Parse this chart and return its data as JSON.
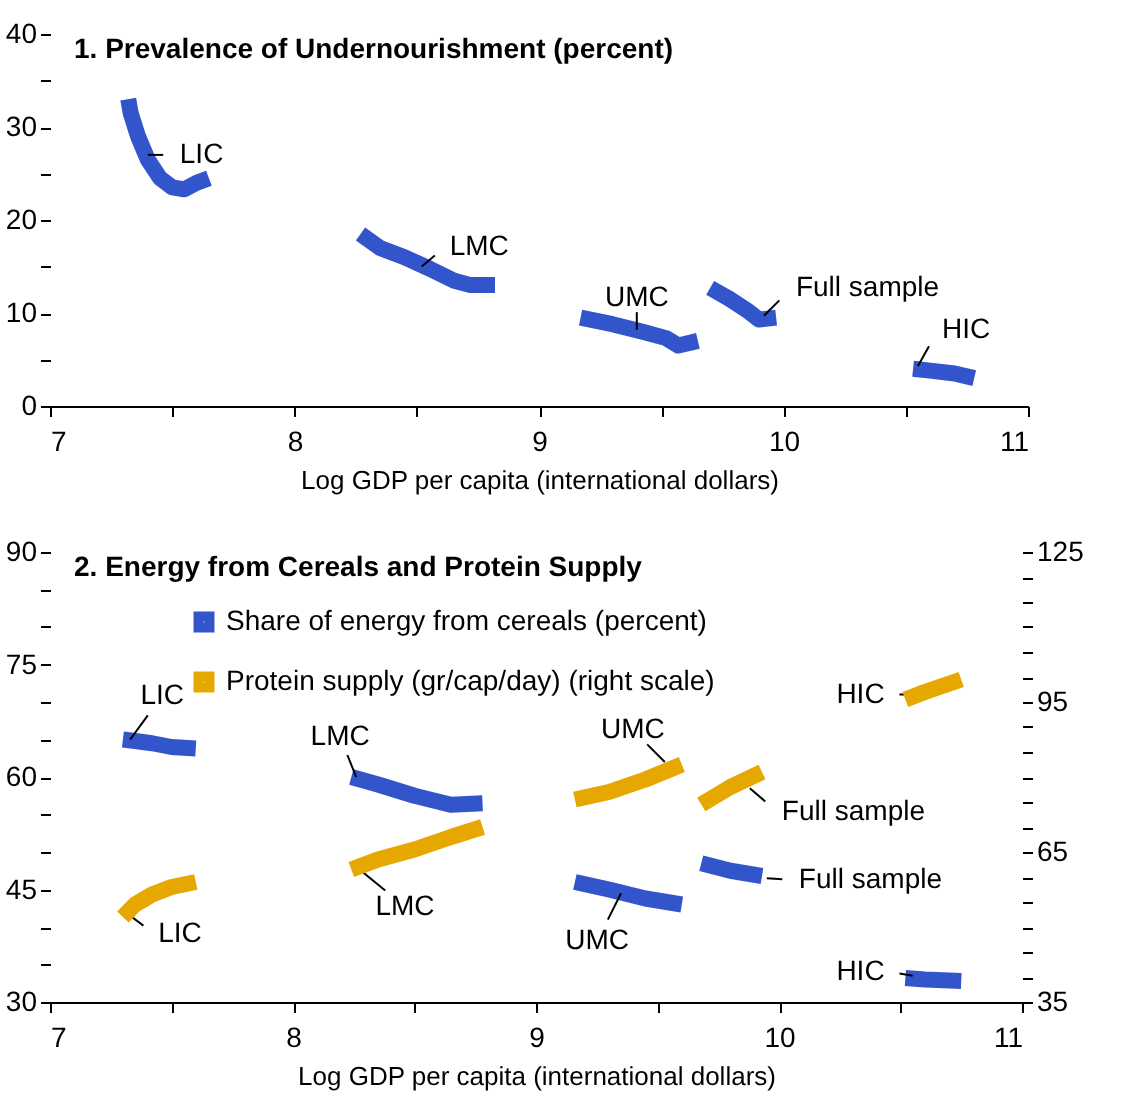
{
  "chart_data": [
    {
      "type": "line",
      "title": "1. Prevalence of Undernourishment (percent)",
      "xlabel": "Log GDP per capita (international dollars)",
      "xlim": [
        7,
        11
      ],
      "xticks": [
        7,
        {
          "value": 7.5,
          "label": null
        },
        8,
        {
          "value": 8.5,
          "label": null
        },
        9,
        {
          "value": 9.5,
          "label": null
        },
        10,
        {
          "value": 10.5,
          "label": null
        },
        11
      ],
      "ylim": [
        0,
        40
      ],
      "yticks": [
        0,
        {
          "value": 5,
          "label": null
        },
        10,
        {
          "value": 15,
          "label": null
        },
        20,
        {
          "value": 25,
          "label": null
        },
        30,
        {
          "value": 35,
          "label": null
        },
        40
      ],
      "series": [
        {
          "color": "#3355cc",
          "x": [
            7.32,
            7.33,
            7.36,
            7.4,
            7.45,
            7.5,
            7.55,
            7.6,
            7.65,
            7.95,
            8.27,
            8.35,
            8.45,
            8.55,
            8.65,
            8.72,
            8.82,
            9.0,
            9.17,
            9.3,
            9.42,
            9.52,
            9.57,
            9.65,
            9.67,
            9.7,
            9.78,
            9.85,
            9.9,
            9.97,
            10.3,
            10.53,
            10.6,
            10.7,
            10.78
          ],
          "values": [
            33,
            31.5,
            29,
            26.5,
            24.5,
            23.5,
            23.3,
            24,
            24.5,
            null,
            18.5,
            17,
            16,
            14.8,
            13.5,
            13,
            13,
            null,
            9.5,
            8.8,
            8,
            7.3,
            6.5,
            7,
            null,
            12.7,
            11.5,
            10.3,
            9.3,
            9.5,
            null,
            4,
            3.8,
            3.5,
            3
          ]
        }
      ],
      "annotations": [
        {
          "text": "LIC",
          "x": 7.4,
          "y": 27
        },
        {
          "text": "LMC",
          "x": 8.52,
          "y": 15
        },
        {
          "text": "UMC",
          "x": 9.4,
          "y": 8.2
        },
        {
          "text": "Full sample",
          "x": 9.92,
          "y": 9.7
        },
        {
          "text": "HIC",
          "x": 10.55,
          "y": 4.3
        }
      ]
    },
    {
      "type": "line",
      "title": "2. Energy from Cereals and Protein Supply",
      "xlabel": "Log GDP per capita (international dollars)",
      "xlim": [
        7,
        11
      ],
      "xticks": [
        7,
        {
          "value": 7.5,
          "label": null
        },
        8,
        {
          "value": 8.5,
          "label": null
        },
        9,
        {
          "value": 9.5,
          "label": null
        },
        10,
        {
          "value": 10.5,
          "label": null
        },
        11
      ],
      "ylim": [
        30,
        90
      ],
      "yticks": [
        30,
        {
          "value": 35,
          "label": null
        },
        {
          "value": 40,
          "label": null
        },
        45,
        {
          "value": 50,
          "label": null
        },
        {
          "value": 55,
          "label": null
        },
        60,
        {
          "value": 65,
          "label": null
        },
        {
          "value": 70,
          "label": null
        },
        75,
        {
          "value": 80,
          "label": null
        },
        {
          "value": 85,
          "label": null
        },
        90
      ],
      "y2lim": [
        35,
        125
      ],
      "y2ticks": [
        35,
        {
          "value": 40,
          "label": null
        },
        {
          "value": 45,
          "label": null
        },
        {
          "value": 50,
          "label": null
        },
        {
          "value": 55,
          "label": null
        },
        {
          "value": 60,
          "label": null
        },
        65,
        {
          "value": 70,
          "label": null
        },
        {
          "value": 75,
          "label": null
        },
        {
          "value": 80,
          "label": null
        },
        {
          "value": 85,
          "label": null
        },
        {
          "value": 90,
          "label": null
        },
        95,
        {
          "value": 100,
          "label": null
        },
        {
          "value": 105,
          "label": null
        },
        {
          "value": 110,
          "label": null
        },
        {
          "value": 115,
          "label": null
        },
        {
          "value": 120,
          "label": null
        },
        125
      ],
      "legend": "top left",
      "series": [
        {
          "name": "Share of energy from cereals (percent)",
          "color": "#3355cc",
          "x": [
            7.3,
            7.35,
            7.42,
            7.5,
            7.6,
            7.9,
            8.24,
            8.35,
            8.5,
            8.65,
            8.78,
            9.0,
            9.16,
            9.3,
            9.45,
            9.6,
            9.64,
            9.68,
            9.8,
            9.93,
            10.2,
            10.52,
            10.6,
            10.75
          ],
          "values": [
            65,
            64.8,
            64.5,
            64,
            63.8,
            null,
            60,
            59,
            57.5,
            56.3,
            56.5,
            null,
            46,
            45,
            43.8,
            43,
            null,
            48.5,
            47.5,
            46.8,
            null,
            33.2,
            33,
            32.8
          ]
        },
        {
          "name": "Protein supply (gr/cap/day) (right scale)",
          "color": "#e6a800",
          "axis": "y2",
          "x": [
            7.3,
            7.35,
            7.42,
            7.5,
            7.6,
            7.9,
            8.24,
            8.35,
            8.5,
            8.65,
            8.78,
            9.0,
            9.16,
            9.3,
            9.45,
            9.6,
            9.64,
            9.68,
            9.8,
            9.93,
            10.2,
            10.52,
            10.6,
            10.75
          ],
          "values": [
            52,
            54.5,
            56.5,
            58,
            59,
            null,
            61.5,
            63.5,
            65.5,
            68,
            70,
            null,
            75.5,
            77,
            79.5,
            82.5,
            null,
            74.5,
            78,
            81,
            null,
            95.5,
            97,
            99.5
          ]
        }
      ],
      "annotations": [
        {
          "text": "LIC",
          "x": 7.33,
          "y": 65
        },
        {
          "text": "LIC",
          "x": 7.33,
          "y": 41.5
        },
        {
          "text": "LMC",
          "x": 8.26,
          "y": 60
        },
        {
          "text": "LMC",
          "x": 8.28,
          "y": 47.5
        },
        {
          "text": "UMC",
          "x": 9.53,
          "y": 62
        },
        {
          "text": "UMC",
          "x": 9.35,
          "y": 44.5
        },
        {
          "text": "Full sample",
          "x": 9.88,
          "y": 58.5
        },
        {
          "text": "Full sample",
          "x": 9.95,
          "y": 46.5
        },
        {
          "text": "HIC",
          "x": 10.55,
          "y": 71
        },
        {
          "text": "HIC",
          "x": 10.55,
          "y": 33.5
        }
      ]
    }
  ]
}
